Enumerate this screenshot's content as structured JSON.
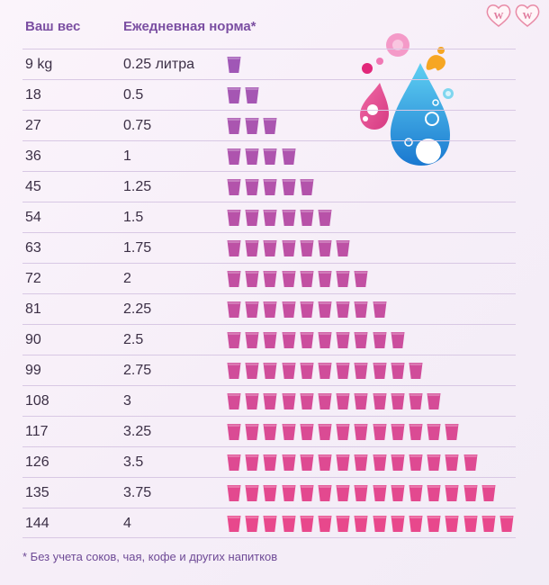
{
  "chart_data": {
    "type": "table",
    "headers": {
      "weight": "Ваш вес",
      "norm": "Ежедневная норма*"
    },
    "rows": [
      {
        "weight": "9 kg",
        "liters": "0.25 литра",
        "cups": 1
      },
      {
        "weight": "18",
        "liters": "0.5",
        "cups": 2
      },
      {
        "weight": "27",
        "liters": "0.75",
        "cups": 3
      },
      {
        "weight": "36",
        "liters": "1",
        "cups": 4
      },
      {
        "weight": "45",
        "liters": "1.25",
        "cups": 5
      },
      {
        "weight": "54",
        "liters": "1.5",
        "cups": 6
      },
      {
        "weight": "63",
        "liters": "1.75",
        "cups": 7
      },
      {
        "weight": "72",
        "liters": "2",
        "cups": 8
      },
      {
        "weight": "81",
        "liters": "2.25",
        "cups": 9
      },
      {
        "weight": "90",
        "liters": "2.5",
        "cups": 10
      },
      {
        "weight": "99",
        "liters": "2.75",
        "cups": 11
      },
      {
        "weight": "108",
        "liters": "3",
        "cups": 12
      },
      {
        "weight": "117",
        "liters": "3.25",
        "cups": 13
      },
      {
        "weight": "126",
        "liters": "3.5",
        "cups": 14
      },
      {
        "weight": "135",
        "liters": "3.75",
        "cups": 15
      },
      {
        "weight": "144",
        "liters": "4",
        "cups": 16
      }
    ],
    "footnote": "* Без учета соков, чая, кофе и других напитков"
  },
  "logo_text": "WW",
  "colors": {
    "header": "#7b4fa2",
    "text": "#3b2f45",
    "cup_start": "#a057b6",
    "cup_end": "#e8488c",
    "row_line": "#d8c8e4",
    "logo": "#e88aa6"
  }
}
